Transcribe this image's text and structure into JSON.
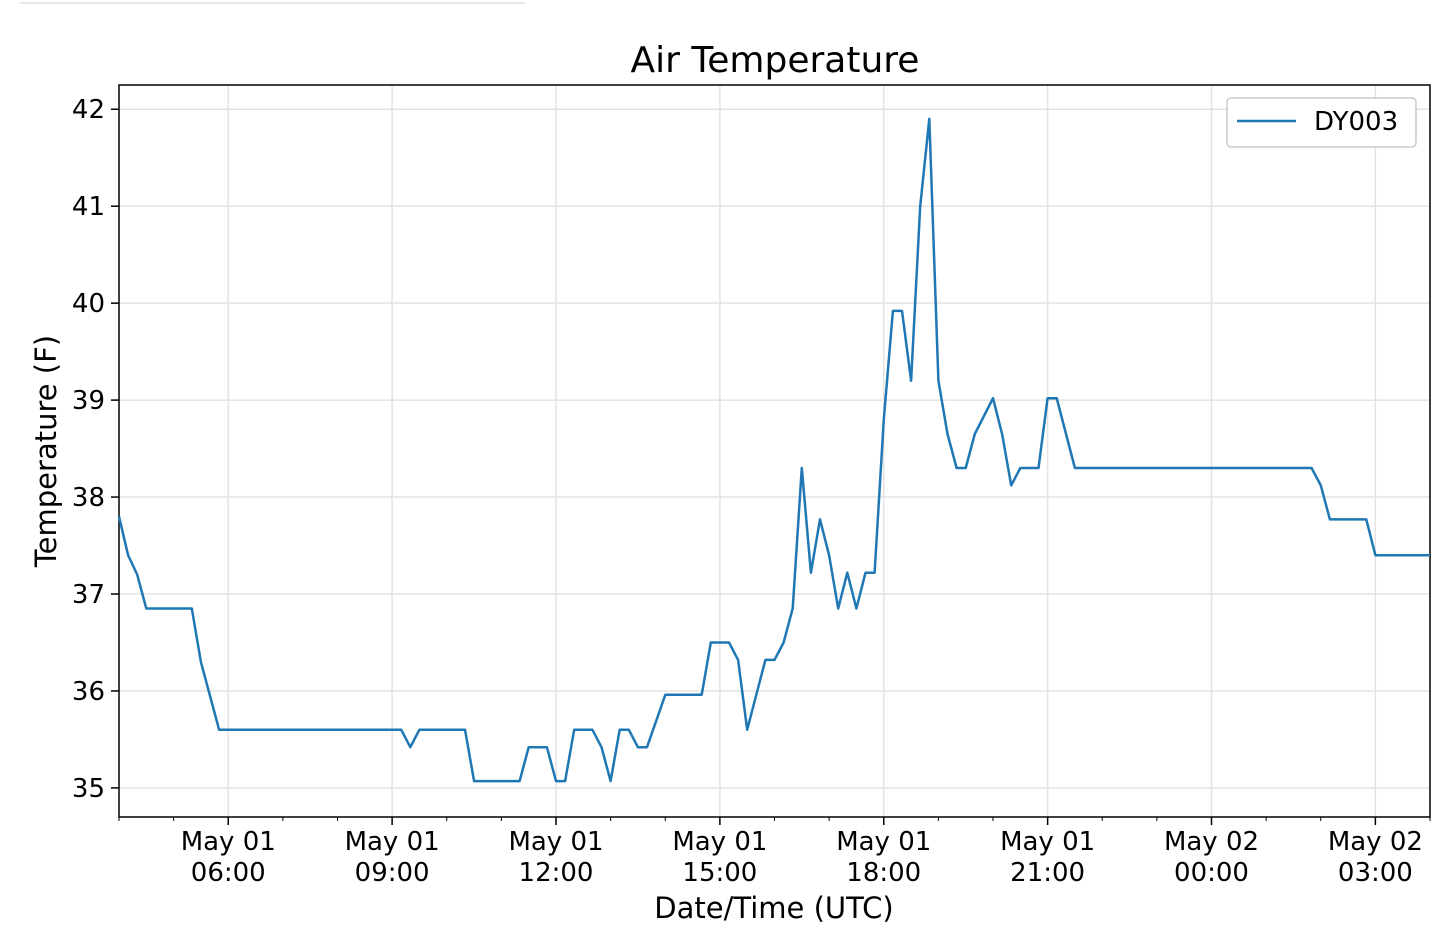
{
  "chart_data": {
    "type": "line",
    "title": "Air Temperature",
    "xlabel": "Date/Time (UTC)",
    "ylabel": "Temperature (F)",
    "x_ticks": [
      {
        "time": "2019-05-01T06:00",
        "line1": "May 01",
        "line2": "06:00"
      },
      {
        "time": "2019-05-01T09:00",
        "line1": "May 01",
        "line2": "09:00"
      },
      {
        "time": "2019-05-01T12:00",
        "line1": "May 01",
        "line2": "12:00"
      },
      {
        "time": "2019-05-01T15:00",
        "line1": "May 01",
        "line2": "15:00"
      },
      {
        "time": "2019-05-01T18:00",
        "line1": "May 01",
        "line2": "18:00"
      },
      {
        "time": "2019-05-01T21:00",
        "line1": "May 01",
        "line2": "21:00"
      },
      {
        "time": "2019-05-02T00:00",
        "line1": "May 02",
        "line2": "00:00"
      },
      {
        "time": "2019-05-02T03:00",
        "line1": "May 02",
        "line2": "03:00"
      }
    ],
    "y_ticks": [
      35,
      36,
      37,
      38,
      39,
      40,
      41,
      42
    ],
    "xlim": [
      "2019-05-01T04:00",
      "2019-05-02T04:00"
    ],
    "ylim": [
      34.7,
      42.25
    ],
    "grid": true,
    "legend_position": "top-right",
    "series": [
      {
        "name": "DY003",
        "color": "#1f77b4",
        "x": [
          "2019-05-01T04:00",
          "2019-05-01T04:10",
          "2019-05-01T04:20",
          "2019-05-01T04:30",
          "2019-05-01T05:20",
          "2019-05-01T05:30",
          "2019-05-01T05:50",
          "2019-05-01T08:10",
          "2019-05-01T09:10",
          "2019-05-01T09:20",
          "2019-05-01T09:30",
          "2019-05-01T10:20",
          "2019-05-01T10:30",
          "2019-05-01T11:20",
          "2019-05-01T11:30",
          "2019-05-01T11:50",
          "2019-05-01T12:00",
          "2019-05-01T12:10",
          "2019-05-01T12:20",
          "2019-05-01T12:40",
          "2019-05-01T12:50",
          "2019-05-01T13:00",
          "2019-05-01T13:10",
          "2019-05-01T13:20",
          "2019-05-01T13:30",
          "2019-05-01T13:40",
          "2019-05-01T14:00",
          "2019-05-01T14:40",
          "2019-05-01T14:50",
          "2019-05-01T15:10",
          "2019-05-01T15:20",
          "2019-05-01T15:30",
          "2019-05-01T15:50",
          "2019-05-01T16:00",
          "2019-05-01T16:10",
          "2019-05-01T16:20",
          "2019-05-01T16:30",
          "2019-05-01T16:40",
          "2019-05-01T16:50",
          "2019-05-01T17:00",
          "2019-05-01T17:10",
          "2019-05-01T17:20",
          "2019-05-01T17:30",
          "2019-05-01T17:40",
          "2019-05-01T17:50",
          "2019-05-01T18:00",
          "2019-05-01T18:10",
          "2019-05-01T18:20",
          "2019-05-01T18:30",
          "2019-05-01T18:40",
          "2019-05-01T18:50",
          "2019-05-01T19:00",
          "2019-05-01T19:10",
          "2019-05-01T19:20",
          "2019-05-01T19:30",
          "2019-05-01T19:40",
          "2019-05-01T20:00",
          "2019-05-01T20:10",
          "2019-05-01T20:20",
          "2019-05-01T20:30",
          "2019-05-01T20:50",
          "2019-05-01T21:00",
          "2019-05-01T21:10",
          "2019-05-01T21:30",
          "2019-05-02T01:50",
          "2019-05-02T02:00",
          "2019-05-02T02:10",
          "2019-05-02T02:50",
          "2019-05-02T03:00",
          "2019-05-02T04:00"
        ],
        "y": [
          37.8,
          37.4,
          37.2,
          36.85,
          36.85,
          36.3,
          35.6,
          35.6,
          35.6,
          35.42,
          35.6,
          35.6,
          35.07,
          35.07,
          35.42,
          35.42,
          35.07,
          35.07,
          35.6,
          35.6,
          35.42,
          35.07,
          35.6,
          35.6,
          35.42,
          35.42,
          35.96,
          35.96,
          36.5,
          36.5,
          36.32,
          35.6,
          36.32,
          36.32,
          36.5,
          36.85,
          38.3,
          37.22,
          37.77,
          37.4,
          36.85,
          37.22,
          36.85,
          37.22,
          37.22,
          38.8,
          39.92,
          39.92,
          39.2,
          41.0,
          41.9,
          39.2,
          38.65,
          38.3,
          38.3,
          38.65,
          39.02,
          38.65,
          38.12,
          38.3,
          38.3,
          39.02,
          39.02,
          38.3,
          38.3,
          38.12,
          37.77,
          37.77,
          37.4,
          37.4
        ]
      }
    ]
  }
}
